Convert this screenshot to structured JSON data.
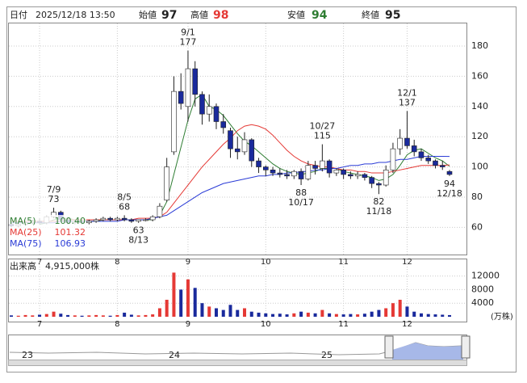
{
  "header": {
    "date_label": "日付",
    "datetime": "2025/12/18 13:50",
    "open_label": "始値",
    "open": 97,
    "high_label": "高値",
    "high": 98,
    "low_label": "安値",
    "low": 94,
    "close_label": "終値",
    "close": 95
  },
  "chart_data": [
    {
      "type": "candlestick",
      "categories": [
        null,
        null,
        null,
        null,
        "7",
        null,
        null,
        null,
        null,
        null,
        null,
        null,
        null,
        null,
        null,
        "8",
        null,
        null,
        null,
        null,
        null,
        null,
        null,
        null,
        null,
        "9",
        null,
        null,
        null,
        null,
        null,
        null,
        null,
        null,
        null,
        null,
        "10",
        null,
        null,
        null,
        null,
        null,
        null,
        null,
        null,
        null,
        null,
        "11",
        null,
        null,
        null,
        null,
        null,
        null,
        null,
        null,
        "12",
        null,
        null,
        null,
        null,
        null,
        null
      ],
      "open": [
        62,
        61,
        62,
        63,
        64,
        63,
        67,
        70,
        65,
        63,
        64,
        63,
        64,
        65,
        66,
        65,
        66,
        65,
        64,
        65,
        65,
        67,
        78,
        110,
        150,
        140,
        165,
        148,
        135,
        140,
        130,
        124,
        112,
        110,
        118,
        104,
        100,
        98,
        96,
        95,
        94,
        97,
        92,
        101,
        99,
        104,
        96,
        98,
        95,
        94,
        95,
        93,
        89,
        88,
        98,
        112,
        119,
        114,
        110,
        106,
        104,
        101,
        97
      ],
      "high": [
        63,
        63,
        64,
        65,
        66,
        68,
        73,
        71,
        66,
        65,
        65,
        65,
        66,
        67,
        67,
        67,
        68,
        66,
        65,
        66,
        68,
        76,
        106,
        160,
        162,
        177,
        170,
        150,
        148,
        142,
        135,
        126,
        120,
        123,
        119,
        106,
        101,
        100,
        99,
        98,
        98,
        99,
        104,
        104,
        115,
        105,
        99,
        99,
        97,
        97,
        96,
        94,
        90,
        101,
        116,
        125,
        137,
        118,
        112,
        108,
        105,
        104,
        98
      ],
      "low": [
        60,
        60,
        61,
        62,
        62,
        62,
        66,
        64,
        62,
        62,
        62,
        62,
        63,
        64,
        64,
        64,
        64,
        63,
        63,
        64,
        64,
        66,
        77,
        108,
        138,
        130,
        140,
        128,
        130,
        125,
        122,
        106,
        105,
        108,
        100,
        96,
        94,
        94,
        93,
        92,
        92,
        88,
        91,
        95,
        97,
        93,
        94,
        92,
        92,
        92,
        91,
        86,
        82,
        87,
        96,
        108,
        112,
        107,
        104,
        102,
        99,
        98,
        94
      ],
      "close": [
        61,
        62,
        63,
        64,
        63,
        67,
        70,
        65,
        63,
        64,
        63,
        64,
        65,
        66,
        65,
        66,
        65,
        64,
        65,
        65,
        67,
        74,
        100,
        150,
        142,
        165,
        148,
        135,
        140,
        130,
        126,
        112,
        110,
        118,
        104,
        100,
        98,
        96,
        95,
        94,
        97,
        92,
        101,
        99,
        104,
        96,
        98,
        95,
        94,
        95,
        93,
        89,
        88,
        98,
        112,
        119,
        114,
        110,
        106,
        104,
        101,
        100,
        95
      ],
      "up_color": "#ffffff",
      "down_color": "#1a2a9c",
      "series": [
        {
          "name": "MA(5)",
          "value_label": "100.40",
          "color": "#2e7d32",
          "values": [
            null,
            null,
            null,
            null,
            62,
            63,
            65,
            66,
            66,
            65,
            64,
            64,
            64,
            65,
            65,
            65,
            65,
            65,
            65,
            65,
            65,
            68,
            77,
            95,
            113,
            131,
            145,
            148,
            140,
            138,
            134,
            128,
            122,
            117,
            114,
            110,
            106,
            102,
            99,
            97,
            96,
            95,
            96,
            97,
            99,
            99,
            99,
            97,
            96,
            95,
            94,
            93,
            91,
            92,
            95,
            101,
            108,
            111,
            112,
            109,
            106,
            104,
            100.4
          ]
        },
        {
          "name": "MA(25)",
          "value_label": "101.32",
          "color": "#e53935",
          "values": [
            64,
            64,
            64,
            64,
            64,
            64,
            64,
            64,
            65,
            65,
            65,
            65,
            65,
            65,
            65,
            65,
            65,
            65,
            66,
            66,
            66,
            67,
            70,
            76,
            82,
            88,
            94,
            100,
            105,
            110,
            115,
            119,
            124,
            127,
            128,
            127,
            125,
            121,
            116,
            111,
            107,
            104,
            102,
            101,
            100,
            100,
            99,
            98,
            98,
            97,
            97,
            96,
            96,
            96,
            97,
            98,
            99,
            100,
            101,
            101,
            101,
            101,
            101.32
          ]
        },
        {
          "name": "MA(75)",
          "value_label": "106.93",
          "color": "#2a3bd6",
          "values": [
            63,
            63,
            63,
            63,
            63,
            63,
            63,
            64,
            64,
            64,
            64,
            64,
            64,
            64,
            64,
            64,
            65,
            65,
            65,
            65,
            66,
            67,
            68,
            71,
            74,
            77,
            80,
            83,
            85,
            87,
            89,
            90,
            91,
            92,
            93,
            94,
            94,
            95,
            95,
            96,
            96,
            97,
            97,
            98,
            98,
            99,
            99,
            100,
            101,
            101,
            102,
            102,
            103,
            103,
            104,
            105,
            105,
            106,
            107,
            107,
            107,
            107,
            106.93
          ]
        }
      ],
      "annotations": [
        {
          "date": "7/9",
          "value": 73
        },
        {
          "date": "8/5",
          "value": 68
        },
        {
          "date": "8/13",
          "value": 63
        },
        {
          "date": "9/1",
          "value": 177
        },
        {
          "date": "10/17",
          "value": 88
        },
        {
          "date": "10/27",
          "value": 115
        },
        {
          "date": "11/18",
          "value": 82
        },
        {
          "date": "12/1",
          "value": 137
        },
        {
          "date": "12/18",
          "value": 94
        }
      ],
      "ylim": [
        42,
        195
      ],
      "yticks": [
        60,
        80,
        100,
        120,
        140,
        160,
        180
      ],
      "grid": true
    },
    {
      "type": "bar",
      "title": "出来高",
      "total_label": "4,915,000株",
      "unit": "(万株)",
      "categories": [
        null,
        null,
        null,
        null,
        "7",
        null,
        null,
        null,
        null,
        null,
        null,
        null,
        null,
        null,
        null,
        "8",
        null,
        null,
        null,
        null,
        null,
        null,
        null,
        null,
        null,
        "9",
        null,
        null,
        null,
        null,
        null,
        null,
        null,
        null,
        null,
        null,
        "10",
        null,
        null,
        null,
        null,
        null,
        null,
        null,
        null,
        null,
        null,
        "11",
        null,
        null,
        null,
        null,
        null,
        null,
        null,
        null,
        "12",
        null,
        null,
        null,
        null,
        null,
        null
      ],
      "values": [
        400,
        300,
        500,
        400,
        600,
        800,
        1500,
        900,
        500,
        400,
        300,
        400,
        500,
        400,
        300,
        500,
        1200,
        600,
        400,
        500,
        700,
        2500,
        5000,
        13000,
        8000,
        11000,
        8500,
        4000,
        3000,
        2500,
        2000,
        3500,
        2000,
        2500,
        1500,
        1200,
        1000,
        800,
        900,
        700,
        1000,
        1500,
        1200,
        1000,
        2000,
        1000,
        800,
        700,
        800,
        700,
        900,
        1500,
        2000,
        2500,
        4000,
        5000,
        3000,
        1500,
        1000,
        800,
        700,
        600,
        491.5
      ],
      "up_color": "#e53935",
      "down_color": "#1a2a9c",
      "ylim": [
        0,
        16900
      ],
      "yticks": [
        4000,
        8000,
        12000
      ],
      "grid": true
    }
  ],
  "navigator": {
    "years": [
      "23",
      "24",
      "25"
    ]
  }
}
